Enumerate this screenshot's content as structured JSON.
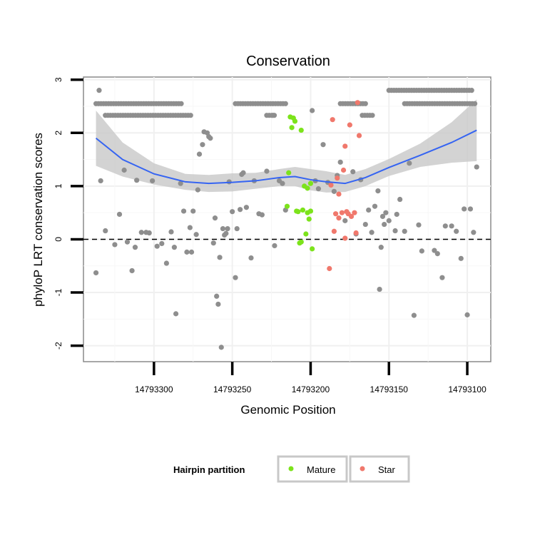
{
  "chart_data": {
    "type": "scatter",
    "title": "Conservation",
    "xlabel": "Genomic Position",
    "ylabel": "phyloP LRT conservation scores",
    "x_reversed": true,
    "xlim": [
      14793085,
      14793345
    ],
    "ylim": [
      -2.3,
      3.05
    ],
    "xticks": [
      14793300,
      14793250,
      14793200,
      14793150,
      14793100
    ],
    "yticks": [
      3,
      2,
      1,
      0,
      -1,
      -2
    ],
    "reference_line": {
      "y": 0,
      "style": "dashed"
    },
    "legend": {
      "title": "Hairpin partition",
      "position": "bottom",
      "entries": [
        {
          "label": "Mature",
          "color": "#7CE31B"
        },
        {
          "label": "Star",
          "color": "#F0786C"
        }
      ]
    },
    "colors": {
      "other": "#8E8E8E",
      "Mature": "#7CE31B",
      "Star": "#F0786C",
      "smooth": "#3564F2",
      "ribbon": "#C8C8C8"
    },
    "series": [
      {
        "name": "Other",
        "points": [
          [
            14793337,
            -0.63
          ],
          [
            14793334,
            1.1
          ],
          [
            14793331,
            0.16
          ],
          [
            14793325,
            -0.1
          ],
          [
            14793322,
            0.47
          ],
          [
            14793319,
            1.3
          ],
          [
            14793317,
            -0.05
          ],
          [
            14793314,
            -0.59
          ],
          [
            14793312,
            -0.15
          ],
          [
            14793311,
            1.11
          ],
          [
            14793308,
            0.13
          ],
          [
            14793305,
            0.13
          ],
          [
            14793303,
            0.12
          ],
          [
            14793301,
            1.1
          ],
          [
            14793298,
            -0.13
          ],
          [
            14793295,
            -0.08
          ],
          [
            14793292,
            -0.45
          ],
          [
            14793289,
            0.14
          ],
          [
            14793287,
            -0.15
          ],
          [
            14793286,
            -1.4
          ],
          [
            14793283,
            1.05
          ],
          [
            14793281,
            0.53
          ],
          [
            14793279,
            -0.24
          ],
          [
            14793277,
            0.22
          ],
          [
            14793276,
            -0.24
          ],
          [
            14793275,
            0.53
          ],
          [
            14793273,
            0.09
          ],
          [
            14793272,
            0.93
          ],
          [
            14793271,
            1.6
          ],
          [
            14793269,
            1.78
          ],
          [
            14793268,
            2.02
          ],
          [
            14793266,
            2.0
          ],
          [
            14793265,
            1.93
          ],
          [
            14793264,
            1.9
          ],
          [
            14793262,
            -0.07
          ],
          [
            14793261,
            0.4
          ],
          [
            14793260,
            -1.07
          ],
          [
            14793259,
            -1.22
          ],
          [
            14793258,
            -0.34
          ],
          [
            14793257,
            -2.03
          ],
          [
            14793256,
            0.2
          ],
          [
            14793255,
            0.08
          ],
          [
            14793254,
            0.11
          ],
          [
            14793253,
            0.2
          ],
          [
            14793252,
            1.08
          ],
          [
            14793250,
            0.52
          ],
          [
            14793248,
            -0.72
          ],
          [
            14793247,
            0.2
          ],
          [
            14793245,
            0.56
          ],
          [
            14793244,
            1.22
          ],
          [
            14793243,
            1.25
          ],
          [
            14793241,
            0.6
          ],
          [
            14793238,
            -0.35
          ],
          [
            14793236,
            1.1
          ],
          [
            14793233,
            0.48
          ],
          [
            14793231,
            0.46
          ],
          [
            14793228,
            1.28
          ],
          [
            14793224,
            2.33
          ],
          [
            14793223,
            -0.12
          ],
          [
            14793220,
            1.1
          ],
          [
            14793218,
            1.05
          ],
          [
            14793216,
            0.55
          ],
          [
            14793199,
            2.42
          ],
          [
            14793197,
            1.1
          ],
          [
            14793195,
            0.95
          ],
          [
            14793192,
            1.78
          ],
          [
            14793189,
            1.07
          ],
          [
            14793185,
            0.9
          ],
          [
            14793183,
            1.2
          ],
          [
            14793181,
            1.45
          ],
          [
            14793178,
            0.35
          ],
          [
            14793173,
            1.27
          ],
          [
            14793171,
            0.1
          ],
          [
            14793168,
            1.12
          ],
          [
            14793165,
            0.28
          ],
          [
            14793163,
            0.55
          ],
          [
            14793161,
            0.13
          ],
          [
            14793159,
            0.62
          ],
          [
            14793157,
            0.91
          ],
          [
            14793156,
            -0.94
          ],
          [
            14793155,
            -0.15
          ],
          [
            14793154,
            0.43
          ],
          [
            14793153,
            0.28
          ],
          [
            14793152,
            0.5
          ],
          [
            14793150,
            0.35
          ],
          [
            14793146,
            0.16
          ],
          [
            14793145,
            0.47
          ],
          [
            14793143,
            0.75
          ],
          [
            14793140,
            0.15
          ],
          [
            14793137,
            1.43
          ],
          [
            14793134,
            -1.43
          ],
          [
            14793131,
            0.27
          ],
          [
            14793129,
            -0.22
          ],
          [
            14793121,
            -0.21
          ],
          [
            14793119,
            -0.27
          ],
          [
            14793116,
            -0.72
          ],
          [
            14793114,
            0.25
          ],
          [
            14793110,
            0.25
          ],
          [
            14793107,
            0.15
          ],
          [
            14793104,
            -0.36
          ],
          [
            14793102,
            0.57
          ],
          [
            14793100,
            -1.42
          ],
          [
            14793098,
            0.57
          ],
          [
            14793096,
            0.13
          ],
          [
            14793094,
            1.36
          ]
        ]
      },
      {
        "name": "Mature",
        "points": [
          [
            14793214,
            1.25
          ],
          [
            14793215,
            0.62
          ],
          [
            14793213,
            2.3
          ],
          [
            14793212,
            2.1
          ],
          [
            14793211,
            2.28
          ],
          [
            14793210,
            2.22
          ],
          [
            14793209,
            0.53
          ],
          [
            14793208,
            0.52
          ],
          [
            14793207,
            -0.07
          ],
          [
            14793206,
            -0.05
          ],
          [
            14793206,
            2.05
          ],
          [
            14793205,
            0.55
          ],
          [
            14793204,
            1.0
          ],
          [
            14793203,
            0.1
          ],
          [
            14793202,
            0.96
          ],
          [
            14793202,
            0.5
          ],
          [
            14793201,
            0.38
          ],
          [
            14793200,
            0.53
          ],
          [
            14793200,
            1.05
          ],
          [
            14793199,
            -0.18
          ]
        ]
      },
      {
        "name": "Star",
        "points": [
          [
            14793187,
            1.02
          ],
          [
            14793186,
            2.25
          ],
          [
            14793185,
            0.15
          ],
          [
            14793184,
            0.48
          ],
          [
            14793183,
            1.15
          ],
          [
            14793182,
            0.85
          ],
          [
            14793182,
            0.4
          ],
          [
            14793180,
            0.5
          ],
          [
            14793179,
            1.3
          ],
          [
            14793178,
            0.02
          ],
          [
            14793178,
            1.75
          ],
          [
            14793177,
            0.52
          ],
          [
            14793176,
            0.48
          ],
          [
            14793175,
            2.15
          ],
          [
            14793174,
            0.43
          ],
          [
            14793172,
            0.5
          ],
          [
            14793171,
            0.12
          ],
          [
            14793170,
            2.57
          ],
          [
            14793169,
            1.95
          ],
          [
            14793188,
            -0.55
          ]
        ]
      }
    ],
    "saturated_points": {
      "description": "grey points near y = 2.5 to 2.8 drawn as dense runs",
      "runs": [
        {
          "y": 2.55,
          "x_from": 14793337,
          "x_to": 14793282
        },
        {
          "y": 2.33,
          "x_from": 14793331,
          "x_to": 14793276
        },
        {
          "y": 2.55,
          "x_from": 14793248,
          "x_to": 14793215
        },
        {
          "y": 2.33,
          "x_from": 14793228,
          "x_to": 14793222
        },
        {
          "y": 2.55,
          "x_from": 14793181,
          "x_to": 14793164
        },
        {
          "y": 2.33,
          "x_from": 14793167,
          "x_to": 14793160
        },
        {
          "y": 2.8,
          "x_from": 14793150,
          "x_to": 14793096
        },
        {
          "y": 2.55,
          "x_from": 14793140,
          "x_to": 14793094
        }
      ],
      "singles": [
        [
          14793335,
          2.8
        ]
      ]
    },
    "smooth": {
      "x": [
        14793337,
        14793320,
        14793300,
        14793280,
        14793265,
        14793250,
        14793235,
        14793220,
        14793210,
        14793200,
        14793190,
        14793178,
        14793165,
        14793150,
        14793130,
        14793110,
        14793094
      ],
      "y": [
        1.9,
        1.5,
        1.23,
        1.08,
        1.05,
        1.07,
        1.1,
        1.16,
        1.18,
        1.12,
        1.08,
        1.05,
        1.16,
        1.35,
        1.58,
        1.82,
        2.05
      ],
      "se": [
        0.52,
        0.32,
        0.2,
        0.15,
        0.16,
        0.17,
        0.15,
        0.16,
        0.18,
        0.2,
        0.2,
        0.16,
        0.16,
        0.16,
        0.22,
        0.38,
        0.58
      ]
    }
  }
}
